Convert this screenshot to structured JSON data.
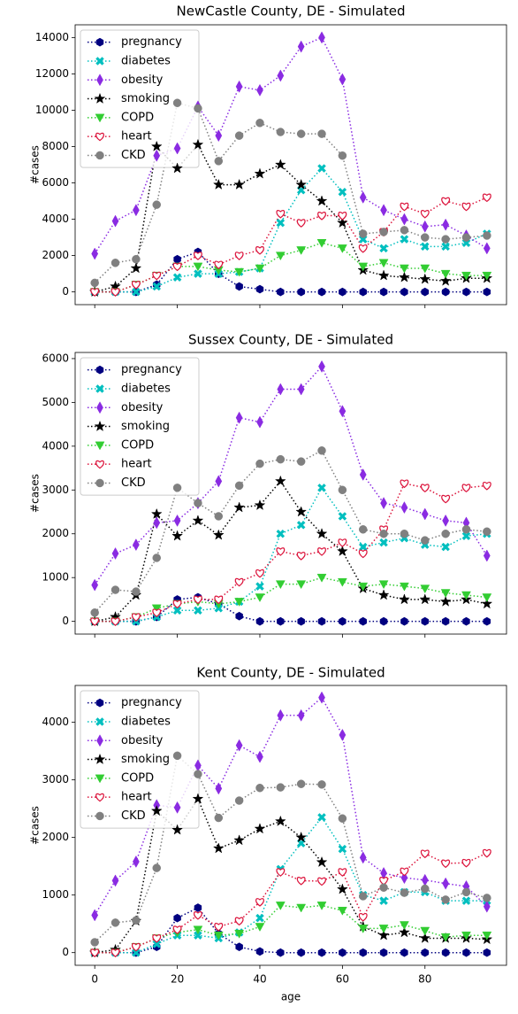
{
  "chart_data": [
    {
      "type": "line",
      "title": "NewCastle County, DE - Simulated",
      "ylabel": "#cases",
      "x": [
        0,
        5,
        10,
        15,
        20,
        25,
        30,
        35,
        40,
        45,
        50,
        55,
        60,
        65,
        70,
        75,
        80,
        85,
        90,
        95
      ],
      "xlim": [
        -4.75,
        99.75
      ],
      "ylim": [
        -700,
        14700
      ],
      "yticks": [
        0,
        2000,
        4000,
        6000,
        8000,
        10000,
        12000,
        14000
      ],
      "legend": "upper left",
      "series": [
        {
          "name": "pregnancy",
          "color": "#000080",
          "marker": "hexagon",
          "values": [
            0,
            0,
            0,
            400,
            1800,
            2200,
            1000,
            300,
            150,
            0,
            0,
            0,
            0,
            0,
            0,
            0,
            0,
            0,
            0,
            0
          ]
        },
        {
          "name": "diabetes",
          "color": "#00bfbf",
          "marker": "x",
          "values": [
            0,
            0,
            0,
            300,
            800,
            1000,
            1000,
            1100,
            1300,
            3800,
            5600,
            6800,
            5500,
            2900,
            2400,
            2900,
            2500,
            2500,
            2700,
            3200
          ]
        },
        {
          "name": "obesity",
          "color": "#8a2be2",
          "marker": "thin-diamond",
          "values": [
            2100,
            3900,
            4500,
            7500,
            7900,
            10200,
            8600,
            11300,
            11100,
            11900,
            13500,
            14000,
            11700,
            5200,
            4500,
            4000,
            3600,
            3700,
            3100,
            2400
          ]
        },
        {
          "name": "smoking",
          "color": "#000000",
          "marker": "star",
          "values": [
            0,
            300,
            1300,
            8000,
            6800,
            8100,
            5900,
            5900,
            6500,
            7000,
            5900,
            5000,
            3800,
            1200,
            900,
            800,
            700,
            600,
            750,
            750
          ]
        },
        {
          "name": "COPD",
          "color": "#32cd32",
          "marker": "triangle-down",
          "values": [
            0,
            0,
            400,
            900,
            1400,
            1400,
            1200,
            1100,
            1300,
            2000,
            2300,
            2700,
            2400,
            1400,
            1600,
            1300,
            1300,
            1000,
            900,
            900
          ]
        },
        {
          "name": "heart",
          "color": "#dc143c",
          "marker": "heart",
          "values": [
            0,
            0,
            400,
            900,
            1400,
            2000,
            1500,
            2000,
            2300,
            4300,
            3800,
            4200,
            4200,
            2400,
            3300,
            4700,
            4300,
            5000,
            4700,
            5200
          ]
        },
        {
          "name": "CKD",
          "color": "#808080",
          "marker": "circle",
          "values": [
            500,
            1600,
            1800,
            4800,
            10400,
            10100,
            7200,
            8600,
            9300,
            8800,
            8700,
            8700,
            7500,
            3200,
            3300,
            3400,
            3000,
            2900,
            3000,
            3100
          ]
        }
      ]
    },
    {
      "type": "line",
      "title": "Sussex County, DE - Simulated",
      "ylabel": "#cases",
      "x": [
        0,
        5,
        10,
        15,
        20,
        25,
        30,
        35,
        40,
        45,
        50,
        55,
        60,
        65,
        70,
        75,
        80,
        85,
        90,
        95
      ],
      "xlim": [
        -4.75,
        99.75
      ],
      "ylim": [
        -290,
        6140
      ],
      "yticks": [
        0,
        1000,
        2000,
        3000,
        4000,
        5000,
        6000
      ],
      "legend": "upper left",
      "series": [
        {
          "name": "pregnancy",
          "color": "#000080",
          "marker": "hexagon",
          "values": [
            0,
            0,
            0,
            100,
            500,
            550,
            400,
            120,
            0,
            0,
            0,
            0,
            0,
            0,
            0,
            0,
            0,
            0,
            0,
            0
          ]
        },
        {
          "name": "diabetes",
          "color": "#00bfbf",
          "marker": "x",
          "values": [
            0,
            0,
            0,
            100,
            250,
            250,
            300,
            450,
            800,
            2000,
            2200,
            3050,
            2400,
            1700,
            1800,
            1900,
            1750,
            1700,
            1950,
            2000
          ]
        },
        {
          "name": "obesity",
          "color": "#8a2be2",
          "marker": "thin-diamond",
          "values": [
            830,
            1550,
            1750,
            2250,
            2300,
            2700,
            3200,
            4650,
            4550,
            5300,
            5300,
            5820,
            4800,
            3350,
            2700,
            2600,
            2450,
            2300,
            2250,
            1500
          ]
        },
        {
          "name": "smoking",
          "color": "#000000",
          "marker": "star",
          "values": [
            0,
            100,
            600,
            2450,
            1950,
            2300,
            1970,
            2600,
            2650,
            3200,
            2500,
            2000,
            1600,
            750,
            600,
            500,
            500,
            450,
            500,
            400
          ]
        },
        {
          "name": "COPD",
          "color": "#32cd32",
          "marker": "triangle-down",
          "values": [
            0,
            0,
            100,
            300,
            400,
            450,
            400,
            450,
            550,
            850,
            850,
            1000,
            900,
            800,
            850,
            800,
            750,
            650,
            600,
            550
          ]
        },
        {
          "name": "heart",
          "color": "#dc143c",
          "marker": "heart",
          "values": [
            0,
            0,
            100,
            200,
            400,
            500,
            500,
            900,
            1100,
            1600,
            1500,
            1600,
            1800,
            1550,
            2100,
            3150,
            3050,
            2800,
            3050,
            3100
          ]
        },
        {
          "name": "CKD",
          "color": "#808080",
          "marker": "circle",
          "values": [
            200,
            720,
            680,
            1450,
            3050,
            2700,
            2400,
            3100,
            3600,
            3700,
            3650,
            3900,
            3000,
            2100,
            2000,
            2000,
            1850,
            2000,
            2100,
            2050
          ]
        }
      ]
    },
    {
      "type": "line",
      "title": "Kent County, DE - Simulated",
      "ylabel": "#cases",
      "xlabel": "age",
      "x": [
        0,
        5,
        10,
        15,
        20,
        25,
        30,
        35,
        40,
        45,
        50,
        55,
        60,
        65,
        70,
        75,
        80,
        85,
        90,
        95
      ],
      "xlim": [
        -4.75,
        99.75
      ],
      "ylim": [
        -220,
        4640
      ],
      "xticks": [
        0,
        20,
        40,
        60,
        80
      ],
      "yticks": [
        0,
        1000,
        2000,
        3000,
        4000
      ],
      "legend": "upper left",
      "series": [
        {
          "name": "pregnancy",
          "color": "#000080",
          "marker": "hexagon",
          "values": [
            0,
            0,
            0,
            100,
            600,
            780,
            330,
            100,
            20,
            0,
            0,
            0,
            0,
            0,
            0,
            0,
            0,
            0,
            0,
            0
          ]
        },
        {
          "name": "diabetes",
          "color": "#00bfbf",
          "marker": "x",
          "values": [
            0,
            0,
            0,
            150,
            300,
            300,
            250,
            350,
            600,
            1450,
            1900,
            2350,
            1800,
            1000,
            900,
            1050,
            1050,
            900,
            900,
            900
          ]
        },
        {
          "name": "obesity",
          "color": "#8a2be2",
          "marker": "thin-diamond",
          "values": [
            650,
            1250,
            1580,
            2560,
            2520,
            3250,
            2850,
            3600,
            3400,
            4120,
            4120,
            4430,
            3780,
            1650,
            1380,
            1300,
            1260,
            1200,
            1150,
            800
          ]
        },
        {
          "name": "smoking",
          "color": "#000000",
          "marker": "star",
          "values": [
            0,
            50,
            550,
            2460,
            2130,
            2670,
            1810,
            1950,
            2150,
            2280,
            2000,
            1570,
            1100,
            450,
            300,
            350,
            250,
            250,
            250,
            230
          ]
        },
        {
          "name": "COPD",
          "color": "#32cd32",
          "marker": "triangle-down",
          "values": [
            0,
            0,
            100,
            250,
            350,
            400,
            300,
            330,
            450,
            820,
            780,
            820,
            730,
            420,
            420,
            480,
            380,
            270,
            300,
            300
          ]
        },
        {
          "name": "heart",
          "color": "#dc143c",
          "marker": "heart",
          "values": [
            0,
            0,
            100,
            250,
            400,
            650,
            450,
            550,
            880,
            1400,
            1250,
            1240,
            1400,
            620,
            1250,
            1410,
            1720,
            1550,
            1560,
            1730
          ]
        },
        {
          "name": "CKD",
          "color": "#808080",
          "marker": "circle",
          "values": [
            180,
            520,
            560,
            1470,
            3420,
            3100,
            2340,
            2640,
            2860,
            2870,
            2930,
            2920,
            2330,
            980,
            1130,
            1040,
            1110,
            920,
            1050,
            950
          ]
        }
      ]
    }
  ]
}
